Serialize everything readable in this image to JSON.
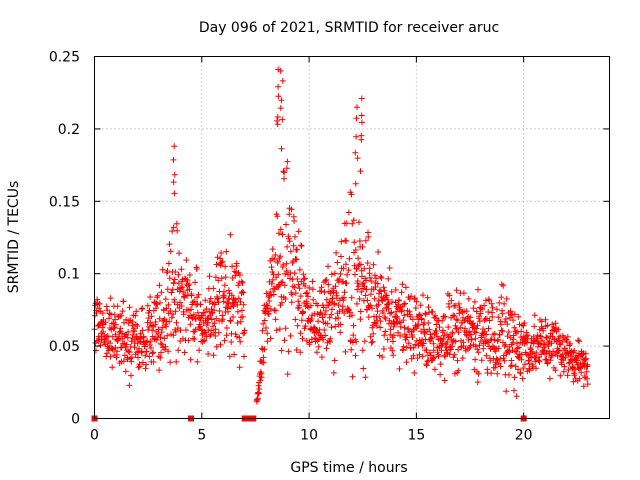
{
  "chart_data": {
    "type": "scatter",
    "title": "Day 096 of 2021, SRMTID for receiver aruc",
    "xlabel": "GPS time / hours",
    "ylabel": "SRMTID / TECUs",
    "xlim": [
      0,
      24
    ],
    "ylim": [
      0,
      0.25
    ],
    "xticks": [
      0,
      5,
      10,
      15,
      20
    ],
    "xtick_labels": [
      "0",
      "5",
      "10",
      "15",
      "20"
    ],
    "yticks": [
      0,
      0.05,
      0.1,
      0.15,
      0.2,
      0.25
    ],
    "ytick_labels": [
      "0",
      "0.05",
      "0.1",
      "0.15",
      "0.2",
      "0.25"
    ],
    "grid": true,
    "marker": "+",
    "color": "#ff0000",
    "series": [
      {
        "name": "SRMTID",
        "envelope_hours": [
          0,
          0.5,
          1,
          1.5,
          2,
          2.5,
          3,
          3.5,
          3.8,
          4,
          4.5,
          5,
          5.5,
          6,
          6.5,
          7,
          7.5,
          8,
          8.5,
          8.8,
          9,
          9.3,
          9.5,
          10,
          10.5,
          11,
          11.5,
          12,
          12.3,
          12.6,
          13,
          13.5,
          14,
          14.5,
          15,
          15.5,
          16,
          16.5,
          17,
          17.5,
          18,
          18.5,
          19,
          19.5,
          20,
          20.5,
          21,
          21.5,
          22,
          22.5,
          23
        ],
        "median_tecu": [
          0.065,
          0.06,
          0.058,
          0.055,
          0.052,
          0.06,
          0.068,
          0.08,
          0.09,
          0.085,
          0.075,
          0.065,
          0.075,
          0.085,
          0.08,
          0.07,
          0.0,
          0.075,
          0.095,
          0.12,
          0.115,
          0.1,
          0.09,
          0.07,
          0.065,
          0.075,
          0.085,
          0.095,
          0.09,
          0.085,
          0.08,
          0.075,
          0.07,
          0.065,
          0.06,
          0.058,
          0.055,
          0.06,
          0.058,
          0.06,
          0.062,
          0.06,
          0.055,
          0.052,
          0.05,
          0.048,
          0.052,
          0.05,
          0.045,
          0.04,
          0.035
        ],
        "spread_tecu": [
          0.02,
          0.02,
          0.025,
          0.025,
          0.025,
          0.025,
          0.03,
          0.035,
          0.06,
          0.04,
          0.035,
          0.025,
          0.03,
          0.035,
          0.035,
          0.03,
          0.0,
          0.03,
          0.05,
          0.07,
          0.065,
          0.04,
          0.035,
          0.025,
          0.025,
          0.03,
          0.04,
          0.07,
          0.06,
          0.04,
          0.03,
          0.03,
          0.025,
          0.025,
          0.025,
          0.025,
          0.025,
          0.025,
          0.025,
          0.025,
          0.03,
          0.03,
          0.035,
          0.035,
          0.025,
          0.02,
          0.02,
          0.02,
          0.015,
          0.015,
          0.01
        ],
        "peak_hours": [
          3.72,
          8.52,
          8.72,
          12.2,
          12.45
        ],
        "peak_tecu": [
          0.188,
          0.241,
          0.24,
          0.215,
          0.221
        ],
        "zero_hours": [
          0.0,
          4.5,
          7.0,
          7.1,
          7.2,
          7.3,
          7.4,
          20.0
        ]
      }
    ]
  }
}
